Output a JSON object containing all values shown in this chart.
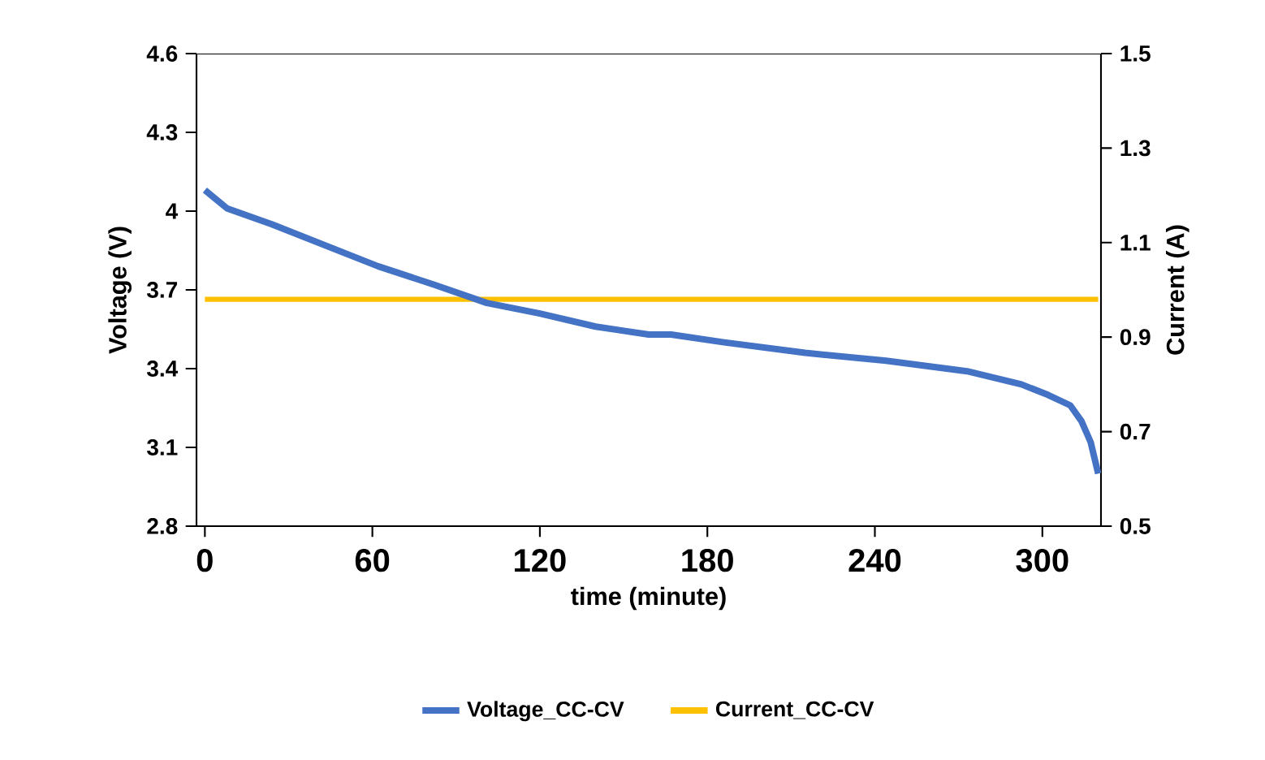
{
  "chart_data": {
    "type": "line",
    "xlabel": "time (minute)",
    "ylabel": "Voltage (V)",
    "y2label": "Current (A)",
    "xlim": [
      -3,
      321
    ],
    "xticks": [
      0,
      60,
      120,
      180,
      240,
      300
    ],
    "ylim": [
      2.8,
      4.6
    ],
    "yticks": [
      2.8,
      3.1,
      3.4,
      3.7,
      4,
      4.3,
      4.6
    ],
    "y2lim": [
      0.5,
      1.5
    ],
    "y2ticks": [
      0.5,
      0.7,
      0.9,
      1.1,
      1.3,
      1.5
    ],
    "grid": false,
    "legend": "bottom",
    "marker": "none",
    "line_style": "solid",
    "series": [
      {
        "name": "Voltage_CC-CV",
        "color": "#4472c4",
        "x": [
          0,
          8,
          24,
          43,
          62,
          82,
          101,
          120,
          140,
          159,
          167,
          186,
          215,
          244,
          273,
          292.5,
          302,
          310,
          314,
          317.3,
          320
        ],
        "values": [
          4.08,
          4.01,
          3.95,
          3.87,
          3.79,
          3.72,
          3.65,
          3.61,
          3.56,
          3.53,
          3.53,
          3.5,
          3.46,
          3.43,
          3.39,
          3.34,
          3.3,
          3.26,
          3.2,
          3.12,
          3.0
        ]
      },
      {
        "name": "Current_CC-CV",
        "color": "#ffc000",
        "axis": "y2",
        "x": [
          0,
          320
        ],
        "values": [
          0.98,
          0.98
        ]
      }
    ]
  }
}
